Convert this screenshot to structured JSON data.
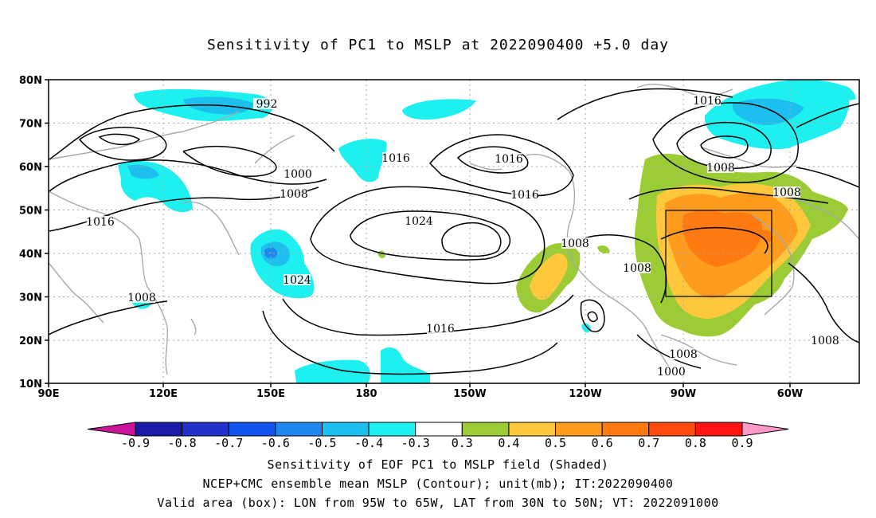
{
  "title": "Sensitivity of PC1 to MSLP at 2022090400 +5.0 day",
  "footer": {
    "line1": "Sensitivity of EOF PC1 to MSLP field (Shaded)",
    "line2": "NCEP+CMC ensemble mean MSLP (Contour); unit(mb); IT:2022090400",
    "line3": "Valid area (box): LON from 95W to 65W, LAT from 30N to 50N; VT: 2022091000"
  },
  "axes": {
    "lat_labels": [
      "80N",
      "70N",
      "60N",
      "50N",
      "40N",
      "30N",
      "20N",
      "10N"
    ],
    "lon_labels": [
      "90E",
      "120E",
      "150E",
      "180",
      "150W",
      "120W",
      "90W",
      "60W"
    ]
  },
  "colorbar": {
    "labels": [
      "-0.9",
      "-0.8",
      "-0.7",
      "-0.6",
      "-0.5",
      "-0.4",
      "-0.3",
      "0.3",
      "0.4",
      "0.5",
      "0.6",
      "0.7",
      "0.8",
      "0.9"
    ],
    "colors": [
      "#1a1aa8",
      "#2233cc",
      "#1155ee",
      "#1f86f0",
      "#1cbfee",
      "#1ef0f0",
      "#ffffff",
      "#9ccc35",
      "#ffc83c",
      "#ff9c1e",
      "#ff7a10",
      "#ff4a10",
      "#ff1414"
    ],
    "under_color": "#cc1499",
    "over_color": "#ff99cc"
  },
  "contour_labels": [
    "992",
    "1000",
    "1008",
    "1016",
    "1016",
    "1016",
    "1016",
    "1024",
    "1024",
    "1008",
    "1016",
    "1008",
    "1008",
    "1008",
    "1000",
    "1008",
    "1016",
    "1008",
    "1008"
  ],
  "valid_box": {
    "lon_range": "95W-65W",
    "lat_range": "30N-50N"
  }
}
